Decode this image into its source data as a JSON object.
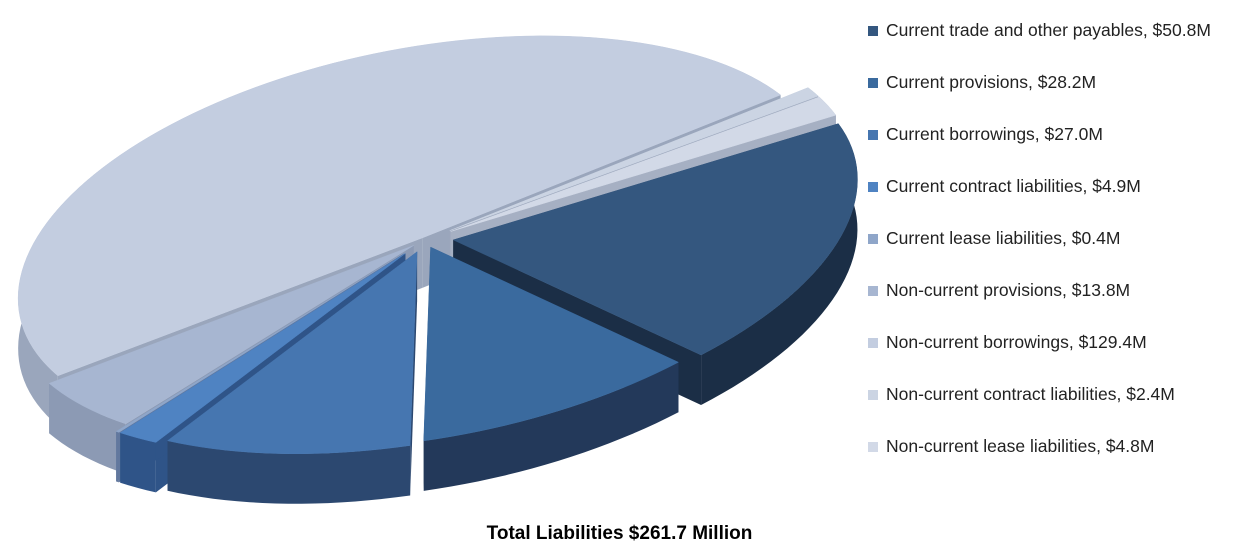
{
  "chart_data": {
    "type": "pie",
    "style": "3d-exploded",
    "categories": [
      "Current trade and other payables",
      "Current provisions",
      "Current borrowings",
      "Current contract liabilities",
      "Current lease liabilities",
      "Non-current provisions",
      "Non-current borrowings",
      "Non-current contract liabilities",
      "Non-current lease liabilities"
    ],
    "values": [
      50.8,
      28.2,
      27.0,
      4.9,
      0.4,
      13.8,
      129.4,
      2.4,
      4.8
    ],
    "unit": "$M",
    "legend_position": "right",
    "legend_labels": [
      "Current trade and other payables, $50.8M",
      "Current provisions, $28.2M",
      "Current borrowings, $27.0M",
      "Current contract liabilities, $4.9M",
      "Current lease liabilities, $0.4M",
      "Non-current provisions, $13.8M",
      "Non-current borrowings, $129.4M",
      "Non-current contract liabilities, $2.4M",
      "Non-current lease liabilities, $4.8M"
    ],
    "colors": [
      "#34577f",
      "#3a6a9e",
      "#4676b0",
      "#4f83c2",
      "#8fa6c9",
      "#a7b6d1",
      "#c3cde0",
      "#cbd4e3",
      "#d2d9e7"
    ],
    "side_colors": [
      "#1b2e46",
      "#23395a",
      "#2c4870",
      "#2f5488",
      "#62789e",
      "#8c9ab4",
      "#9aa6bc",
      "#9ea9be",
      "#a6b0c3"
    ],
    "total_label": "Total Liabilities  $261.7 Million"
  }
}
